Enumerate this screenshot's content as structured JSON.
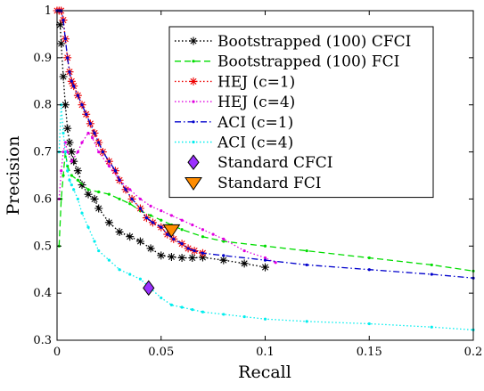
{
  "chart_data": {
    "type": "line",
    "xlabel": "Recall",
    "ylabel": "Precision",
    "xlim": [
      0,
      0.2
    ],
    "ylim": [
      0.3,
      1.0
    ],
    "xticks": [
      0,
      0.05,
      0.1,
      0.15,
      0.2
    ],
    "xtick_labels": [
      "0",
      "0.05",
      "0.1",
      "0.15",
      "0.2"
    ],
    "yticks": [
      0.3,
      0.4,
      0.5,
      0.6,
      0.7,
      0.8,
      0.9,
      1.0
    ],
    "ytick_labels": [
      "0.3",
      "0.4",
      "0.5",
      "0.6",
      "0.7",
      "0.8",
      "0.9",
      "1"
    ],
    "grid": false,
    "legend_position": "top-right",
    "series": [
      {
        "name": "Bootstrapped (100) CFCI",
        "color": "#000000",
        "line_style": "dotted",
        "marker": "asterisk",
        "x": [
          0.0015,
          0.002,
          0.003,
          0.004,
          0.005,
          0.006,
          0.007,
          0.008,
          0.01,
          0.012,
          0.015,
          0.018,
          0.02,
          0.025,
          0.03,
          0.035,
          0.04,
          0.045,
          0.05,
          0.055,
          0.06,
          0.065,
          0.07,
          0.08,
          0.09,
          0.1
        ],
        "y": [
          0.97,
          0.93,
          0.86,
          0.8,
          0.75,
          0.72,
          0.7,
          0.68,
          0.66,
          0.63,
          0.61,
          0.6,
          0.58,
          0.55,
          0.53,
          0.52,
          0.51,
          0.495,
          0.48,
          0.477,
          0.475,
          0.475,
          0.476,
          0.47,
          0.463,
          0.455
        ]
      },
      {
        "name": "Bootstrapped (100) FCI",
        "color": "#00dd00",
        "line_style": "dashed",
        "marker": "dot",
        "x": [
          0.001,
          0.002,
          0.003,
          0.004,
          0.005,
          0.007,
          0.01,
          0.015,
          0.02,
          0.025,
          0.03,
          0.035,
          0.04,
          0.045,
          0.05,
          0.055,
          0.06,
          0.07,
          0.08,
          0.1,
          0.12,
          0.15,
          0.18,
          0.2
        ],
        "y": [
          0.5,
          0.6,
          0.65,
          0.7,
          0.67,
          0.65,
          0.64,
          0.62,
          0.615,
          0.61,
          0.6,
          0.59,
          0.575,
          0.565,
          0.555,
          0.545,
          0.535,
          0.52,
          0.51,
          0.5,
          0.49,
          0.475,
          0.46,
          0.447
        ]
      },
      {
        "name": "HEJ (c=1)",
        "color": "#ee0000",
        "line_style": "dotted",
        "marker": "asterisk",
        "x": [
          0.0,
          0.001,
          0.002,
          0.003,
          0.004,
          0.005,
          0.006,
          0.007,
          0.008,
          0.01,
          0.012,
          0.014,
          0.016,
          0.018,
          0.02,
          0.022,
          0.025,
          0.028,
          0.03,
          0.033,
          0.036,
          0.04,
          0.043,
          0.046,
          0.05,
          0.053,
          0.056,
          0.06,
          0.063,
          0.066,
          0.07
        ],
        "y": [
          1.0,
          1.0,
          1.0,
          0.98,
          0.94,
          0.9,
          0.87,
          0.85,
          0.84,
          0.82,
          0.8,
          0.78,
          0.76,
          0.74,
          0.72,
          0.7,
          0.68,
          0.66,
          0.64,
          0.62,
          0.6,
          0.58,
          0.56,
          0.55,
          0.54,
          0.525,
          0.515,
          0.505,
          0.495,
          0.49,
          0.485
        ]
      },
      {
        "name": "HEJ (c=4)",
        "color": "#e000e0",
        "line_style": "dotted",
        "marker": "dot",
        "x": [
          0.001,
          0.002,
          0.003,
          0.004,
          0.005,
          0.007,
          0.01,
          0.012,
          0.015,
          0.017,
          0.02,
          0.025,
          0.03,
          0.035,
          0.04,
          0.045,
          0.05,
          0.055,
          0.06,
          0.065,
          0.07,
          0.075,
          0.08,
          0.09,
          0.1,
          0.105
        ],
        "y": [
          0.6,
          0.66,
          0.7,
          0.72,
          0.7,
          0.68,
          0.7,
          0.72,
          0.74,
          0.73,
          0.7,
          0.67,
          0.64,
          0.62,
          0.6,
          0.585,
          0.575,
          0.565,
          0.555,
          0.545,
          0.535,
          0.525,
          0.515,
          0.49,
          0.475,
          0.465
        ]
      },
      {
        "name": "ACI (c=1)",
        "color": "#0000cc",
        "line_style": "dashdot",
        "marker": "dot",
        "x": [
          0.0,
          0.001,
          0.002,
          0.003,
          0.004,
          0.005,
          0.006,
          0.007,
          0.008,
          0.01,
          0.012,
          0.014,
          0.016,
          0.018,
          0.02,
          0.022,
          0.025,
          0.028,
          0.03,
          0.033,
          0.036,
          0.04,
          0.043,
          0.046,
          0.05,
          0.053,
          0.056,
          0.06,
          0.063,
          0.066,
          0.07,
          0.08,
          0.1,
          0.12,
          0.15,
          0.18,
          0.2
        ],
        "y": [
          1.0,
          1.0,
          1.0,
          0.98,
          0.94,
          0.9,
          0.87,
          0.85,
          0.84,
          0.82,
          0.8,
          0.78,
          0.76,
          0.74,
          0.72,
          0.7,
          0.68,
          0.66,
          0.64,
          0.62,
          0.6,
          0.58,
          0.56,
          0.55,
          0.54,
          0.525,
          0.515,
          0.505,
          0.495,
          0.49,
          0.485,
          0.48,
          0.47,
          0.46,
          0.45,
          0.44,
          0.432
        ]
      },
      {
        "name": "ACI (c=4)",
        "color": "#00eeee",
        "line_style": "dotted",
        "marker": "dot",
        "x": [
          0.001,
          0.002,
          0.003,
          0.004,
          0.005,
          0.006,
          0.007,
          0.008,
          0.01,
          0.012,
          0.015,
          0.018,
          0.02,
          0.025,
          0.03,
          0.035,
          0.04,
          0.045,
          0.05,
          0.055,
          0.06,
          0.065,
          0.07,
          0.08,
          0.09,
          0.1,
          0.12,
          0.15,
          0.18,
          0.2
        ],
        "y": [
          0.7,
          0.8,
          0.74,
          0.7,
          0.66,
          0.64,
          0.63,
          0.62,
          0.6,
          0.57,
          0.54,
          0.51,
          0.49,
          0.47,
          0.45,
          0.44,
          0.43,
          0.41,
          0.39,
          0.375,
          0.37,
          0.365,
          0.36,
          0.355,
          0.35,
          0.345,
          0.34,
          0.335,
          0.328,
          0.322
        ]
      }
    ],
    "points": [
      {
        "name": "Standard CFCI",
        "x": 0.044,
        "y": 0.411,
        "marker": "diamond",
        "color": "#9b30ff"
      },
      {
        "name": "Standard FCI",
        "x": 0.055,
        "y": 0.535,
        "marker": "triangle-down",
        "color": "#ff8c00"
      }
    ]
  }
}
